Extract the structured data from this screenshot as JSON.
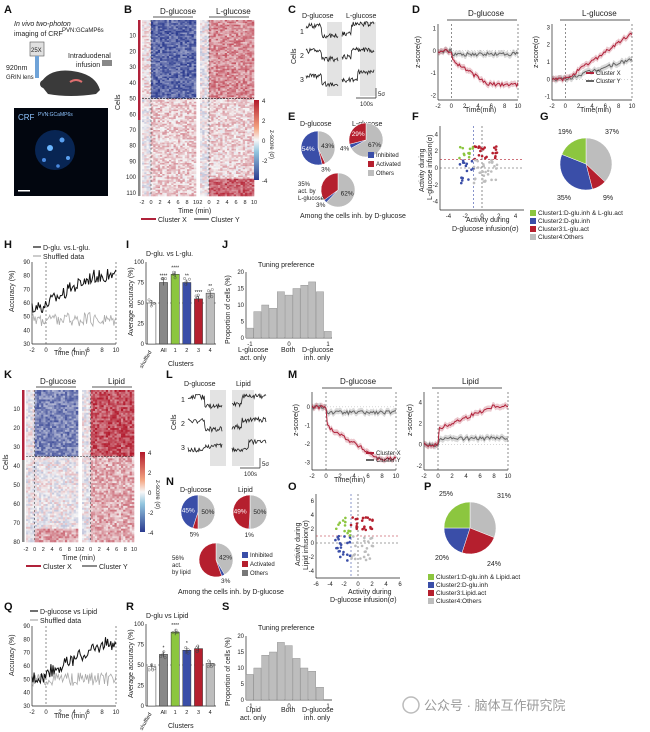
{
  "panels": {
    "A": {
      "letter": "A",
      "line1": "In vivo two-photon",
      "line2": "imaging of CRF",
      "sup": "PVN:GCaMP6s",
      "obj": "25X",
      "laser": "920nm",
      "grin": "GRIN lens",
      "infusion1": "Intraduodenal",
      "infusion2": "infusion",
      "img_label": "CRF",
      "img_sup": "PVN:GCaMP6s"
    },
    "B": {
      "letter": "B",
      "title_left": "D-glucose",
      "title_right": "L-glucose",
      "ylabel": "Cells",
      "yticks": [
        "10",
        "20",
        "30",
        "40",
        "50",
        "60",
        "70",
        "80",
        "90",
        "100",
        "110"
      ],
      "xticks": [
        "-2",
        "0",
        "2",
        "4",
        "6",
        "8",
        "10",
        "-2",
        "0",
        "2",
        "4",
        "6",
        "8",
        "10"
      ],
      "xlabel": "Time (min)",
      "cbar_label": "z-score (σ)",
      "cbar_ticks": [
        "4",
        "2",
        "0",
        "-2",
        "-4"
      ],
      "legend_x": "Cluster X",
      "legend_y": "Cluster Y"
    },
    "C": {
      "letter": "C",
      "title_left": "D-glucose",
      "title_right": "L-glucose",
      "ylabel": "Cells",
      "rows": [
        "1",
        "2",
        "3"
      ],
      "scale_t": "100s",
      "scale_z": "5σ"
    },
    "D": {
      "letter": "D",
      "title_left": "D-glucose",
      "title_right": "L-glucose",
      "ylabel": "z-score(σ)",
      "xlabel": "Time(min)",
      "xticks": [
        "-2",
        "0",
        "2",
        "4",
        "6",
        "8",
        "10"
      ],
      "yticks_l": [
        "1",
        "0",
        "-1",
        "-2"
      ],
      "yticks_r": [
        "3",
        "2",
        "1",
        "0",
        "-1"
      ],
      "legend_x": "Cluster X",
      "legend_y": "Cluster Y"
    },
    "E": {
      "letter": "E",
      "title_left": "D-glucose",
      "title_right": "L-glucose",
      "left_pct": [
        "43%",
        "54%",
        "3%"
      ],
      "right_pct": [
        "67%",
        "29%",
        "4%"
      ],
      "sub_pct": [
        "62%",
        "35%",
        "3%"
      ],
      "sub_label1": "35%",
      "sub_label2": "act. by",
      "sub_label3": "L-glucose",
      "legend": [
        "Inhibited",
        "Activated",
        "Others"
      ],
      "caption": "Among the cells inh. by D-glucose"
    },
    "F": {
      "letter": "F",
      "ylabel1": "Activity during",
      "ylabel2": "L-glucose infusion(σ)",
      "xlabel1": "Activity during",
      "xlabel2": "D-glucose infusion(σ)",
      "xticks": [
        "-4",
        "-2",
        "0",
        "2",
        "4"
      ],
      "yticks": [
        "4",
        "2",
        "0",
        "-2",
        "-4"
      ]
    },
    "G": {
      "letter": "G",
      "pct": [
        "19%",
        "37%",
        "35%",
        "9%"
      ],
      "legend": [
        "Cluster1:D-glu.inh & L-glu.act",
        "Cluster2:D-glu.inh",
        "Cluster3:L-glu.act",
        "Cluster4:Others"
      ]
    },
    "H": {
      "letter": "H",
      "legend1": "D-glu. vs.L-glu.",
      "legend2": "Shuffled data",
      "ylabel": "Accuracy (%)",
      "xlabel": "Time (min)",
      "yticks": [
        "90",
        "80",
        "70",
        "60",
        "50",
        "40",
        "30"
      ],
      "xticks": [
        "-2",
        "0",
        "2",
        "4",
        "6",
        "8",
        "10"
      ]
    },
    "I": {
      "letter": "I",
      "title": "D-glu. vs L-glu.",
      "ylabel": "Average accuracy (%)",
      "yticks": [
        "100",
        "75",
        "50",
        "25",
        "0"
      ],
      "categories": [
        "shuffled",
        "All",
        "1",
        "2",
        "3",
        "4"
      ],
      "xlabel": "Clusters",
      "stars": [
        "****",
        "****",
        "**",
        "****",
        "**"
      ]
    },
    "J": {
      "letter": "J",
      "title": "Tuning preference",
      "ylabel": "Proportion of cells (%)",
      "yticks": [
        "20",
        "15",
        "10",
        "5",
        "0"
      ],
      "xticks": [
        "-1",
        "0",
        "1"
      ],
      "x1": "L-glucose",
      "x1b": "act. only",
      "x2": "Both",
      "x3": "D-glucose",
      "x3b": "inh. only"
    },
    "K": {
      "letter": "K",
      "title_left": "D-glucose",
      "title_right": "Lipid",
      "ylabel": "Cells",
      "yticks": [
        "10",
        "20",
        "30",
        "40",
        "50",
        "60",
        "70",
        "80"
      ],
      "xticks": [
        "-2",
        "0",
        "2",
        "4",
        "6",
        "8",
        "10",
        "-2",
        "0",
        "2",
        "4",
        "6",
        "8",
        "10"
      ],
      "xlabel": "Time (min)",
      "cbar_label": "z-score (σ)",
      "cbar_ticks": [
        "4",
        "2",
        "0",
        "-2",
        "-4"
      ],
      "legend_x": "Cluster X",
      "legend_y": "Cluster Y"
    },
    "L": {
      "letter": "L",
      "title_left": "D-glucose",
      "title_right": "Lipid",
      "ylabel": "Cells",
      "rows": [
        "1",
        "2",
        "3"
      ],
      "scale_t": "100s",
      "scale_z": "5σ"
    },
    "M": {
      "letter": "M",
      "title_left": "D-glucose",
      "title_right": "Lipid",
      "ylabel": "z-score(σ)",
      "xlabel": "Time(min)",
      "xticks": [
        "-2",
        "0",
        "2",
        "4",
        "6",
        "8",
        "10"
      ],
      "yticks_l": [
        "0",
        "-1",
        "-2",
        "-3"
      ],
      "yticks_r": [
        "4",
        "2",
        "0",
        "-2"
      ],
      "legend_x": "Cluster X",
      "legend_y": "Cluster Y"
    },
    "N": {
      "letter": "N",
      "title_left": "D-glucose",
      "title_right": "Lipid",
      "left_pct": [
        "45%",
        "50%",
        "5%"
      ],
      "right_pct": [
        "49%",
        "50%",
        "1%"
      ],
      "sub_pct": [
        "42%",
        "56%",
        "3%"
      ],
      "sub_label1": "56%",
      "sub_label2": "act.",
      "sub_label3": "by lipid",
      "legend": [
        "Inhibited",
        "Activated",
        "Others"
      ],
      "caption": "Among the cells inh. by D-glucose"
    },
    "O": {
      "letter": "O",
      "ylabel1": "Activity during",
      "ylabel2": "Lipid infusion(σ)",
      "xlabel1": "Activity during",
      "xlabel2": "D-glucose infusion(σ)",
      "xticks": [
        "-6",
        "-4",
        "-2",
        "0",
        "2",
        "4",
        "6"
      ],
      "yticks": [
        "6",
        "4",
        "2",
        "0",
        "-2",
        "-4"
      ]
    },
    "P": {
      "letter": "P",
      "pct": [
        "25%",
        "31%",
        "20%",
        "24%"
      ],
      "legend": [
        "Cluster1:D-glu.inh & Lipid.act",
        "Cluster2:D-glu.inh",
        "Cluster3:Lipid.act",
        "Cluster4:Others"
      ]
    },
    "Q": {
      "letter": "Q",
      "legend1": "D-glucose vs Lipid",
      "legend2": "Shuffled data",
      "ylabel": "Accuracy (%)",
      "xlabel": "Time (min)",
      "yticks": [
        "90",
        "80",
        "70",
        "60",
        "50",
        "40",
        "30"
      ],
      "xticks": [
        "-2",
        "0",
        "2",
        "4",
        "6",
        "8",
        "10"
      ]
    },
    "R": {
      "letter": "R",
      "title": "D-glu vs Lipid",
      "ylabel": "Average accuracy (%)",
      "yticks": [
        "100",
        "75",
        "50",
        "25",
        "0"
      ],
      "categories": [
        "shuffled",
        "All",
        "1",
        "2",
        "3",
        "4"
      ],
      "xlabel": "Clusters",
      "stars": [
        "*",
        "****",
        "*"
      ]
    },
    "S": {
      "letter": "S",
      "title": "Tuning preference",
      "ylabel": "Proportion of cells (%)",
      "yticks": [
        "20",
        "15",
        "10",
        "5",
        "0"
      ],
      "xticks": [
        "-1",
        "0",
        "1"
      ],
      "x1": "Lipid",
      "x1b": "act. only",
      "x2": "Both",
      "x3": "D-glucose",
      "x3b": "inh. only"
    }
  },
  "watermark": "公众号 · 脑体互作研究院",
  "colors": {
    "red": "#b0223a",
    "grey": "#8a8a8a",
    "blue": "#3a4ea8",
    "green": "#8cc63f",
    "darkred": "#b51f2e",
    "lightgrey": "#bdbdbd"
  },
  "chart_data": [
    {
      "type": "bar",
      "panel": "I",
      "categories": [
        "shuffled",
        "All",
        "1",
        "2",
        "3",
        "4"
      ],
      "values": [
        50,
        75,
        85,
        75,
        55,
        62
      ],
      "ylim": [
        0,
        100
      ],
      "ylabel": "Average accuracy (%)"
    },
    {
      "type": "bar",
      "panel": "R",
      "categories": [
        "shuffled",
        "All",
        "1",
        "2",
        "3",
        "4"
      ],
      "values": [
        48,
        63,
        90,
        68,
        70,
        52
      ],
      "ylim": [
        0,
        100
      ],
      "ylabel": "Average accuracy (%)"
    },
    {
      "type": "bar",
      "panel": "J",
      "categories": [
        "-1",
        "-0.8",
        "-0.6",
        "-0.4",
        "-0.2",
        "0",
        "0.2",
        "0.4",
        "0.6",
        "0.8",
        "1"
      ],
      "values": [
        3,
        8,
        10,
        9,
        14,
        13,
        15,
        16,
        17,
        14,
        2
      ],
      "ylim": [
        0,
        20
      ]
    },
    {
      "type": "bar",
      "panel": "S",
      "categories": [
        "-1",
        "-0.8",
        "-0.6",
        "-0.4",
        "-0.2",
        "0",
        "0.2",
        "0.4",
        "0.6",
        "0.8",
        "1"
      ],
      "values": [
        8,
        10,
        14,
        15,
        18,
        17,
        13,
        10,
        9,
        4,
        0
      ],
      "ylim": [
        0,
        20
      ]
    },
    {
      "type": "pie",
      "panel": "G",
      "labels": [
        "Cluster1",
        "Cluster2",
        "Cluster3",
        "Cluster4"
      ],
      "values": [
        19,
        35,
        9,
        37
      ]
    },
    {
      "type": "pie",
      "panel": "P",
      "labels": [
        "Cluster1",
        "Cluster2",
        "Cluster3",
        "Cluster4"
      ],
      "values": [
        25,
        20,
        24,
        31
      ]
    }
  ]
}
